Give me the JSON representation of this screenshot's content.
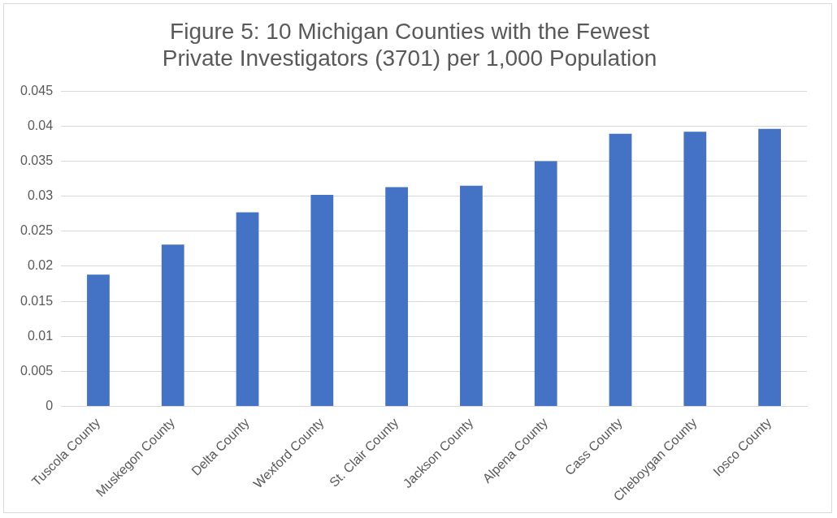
{
  "chart_data": {
    "type": "bar",
    "title": "Figure 5: 10 Michigan Counties with the Fewest Private Investigators (3701) per 1,000 Population",
    "categories": [
      "Tuscola County",
      "Muskegon County",
      "Delta County",
      "Wexford County",
      "St. Clair County",
      "Jackson County",
      "Alpena County",
      "Cass County",
      "Cheboygan County",
      "Iosco County"
    ],
    "values": [
      0.0188,
      0.0231,
      0.0277,
      0.0302,
      0.0313,
      0.0315,
      0.035,
      0.0389,
      0.0392,
      0.0396
    ],
    "color": "#4472c4",
    "ylim": [
      0,
      0.045
    ],
    "yticks": [
      0,
      0.005,
      0.01,
      0.015,
      0.02,
      0.025,
      0.03,
      0.035,
      0.04,
      0.045
    ],
    "grid": true
  }
}
